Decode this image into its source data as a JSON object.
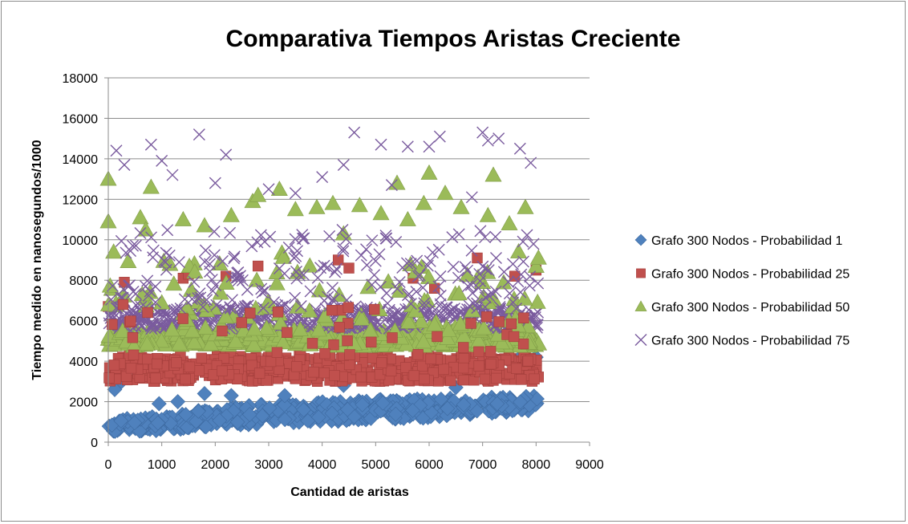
{
  "chart_data": {
    "type": "scatter",
    "title": "Comparativa Tiempos Aristas Creciente",
    "xlabel": "Cantidad de aristas",
    "ylabel": "Tiempo medido en nanosegundos/1000",
    "xlim": [
      0,
      9000
    ],
    "ylim": [
      0,
      18000
    ],
    "xticks": [
      "0",
      "1000",
      "2000",
      "3000",
      "4000",
      "5000",
      "6000",
      "7000",
      "8000",
      "9000"
    ],
    "yticks": [
      "0",
      "2000",
      "4000",
      "6000",
      "8000",
      "10000",
      "12000",
      "14000",
      "16000",
      "18000"
    ],
    "grid": "horizontal",
    "legend_position": "right",
    "x_range": [
      0,
      8050
    ],
    "series": [
      {
        "name": "Grafo 300 Nodos - Probabilidad 1",
        "marker": "diamond",
        "color": "#4f81bd",
        "stroke": "#3d6aa1",
        "band": [
          {
            "x": 0,
            "low": 500,
            "high": 1100
          },
          {
            "x": 1000,
            "low": 550,
            "high": 1300
          },
          {
            "x": 2000,
            "low": 800,
            "high": 1700
          },
          {
            "x": 3000,
            "low": 900,
            "high": 1900
          },
          {
            "x": 4000,
            "low": 1000,
            "high": 2000
          },
          {
            "x": 5000,
            "low": 1100,
            "high": 2100
          },
          {
            "x": 6000,
            "low": 1200,
            "high": 2150
          },
          {
            "x": 7000,
            "low": 1400,
            "high": 2200
          },
          {
            "x": 8000,
            "low": 1550,
            "high": 2300
          }
        ],
        "outliers": [
          {
            "x": 120,
            "y": 2600
          },
          {
            "x": 250,
            "y": 3000
          },
          {
            "x": 950,
            "y": 1900
          },
          {
            "x": 1300,
            "y": 2000
          },
          {
            "x": 1800,
            "y": 2400
          },
          {
            "x": 2300,
            "y": 2300
          },
          {
            "x": 3300,
            "y": 2300
          },
          {
            "x": 4400,
            "y": 2800
          },
          {
            "x": 6500,
            "y": 2700
          },
          {
            "x": 7700,
            "y": 4200
          },
          {
            "x": 8000,
            "y": 4200
          }
        ]
      },
      {
        "name": "Grafo 300 Nodos - Probabilidad 25",
        "marker": "square",
        "color": "#c0504d",
        "stroke": "#a33e3b",
        "band": [
          {
            "x": 0,
            "low": 3000,
            "high": 4300
          },
          {
            "x": 2000,
            "low": 3000,
            "high": 4300
          },
          {
            "x": 4000,
            "low": 3000,
            "high": 4300
          },
          {
            "x": 6000,
            "low": 3000,
            "high": 4300
          },
          {
            "x": 8000,
            "low": 3000,
            "high": 4300
          }
        ],
        "outliers": [
          {
            "x": 0,
            "y": 6700
          },
          {
            "x": 300,
            "y": 7900
          },
          {
            "x": 1400,
            "y": 8100
          },
          {
            "x": 1500,
            "y": 8300
          },
          {
            "x": 2200,
            "y": 8200
          },
          {
            "x": 2800,
            "y": 8700
          },
          {
            "x": 4300,
            "y": 9000
          },
          {
            "x": 4500,
            "y": 8600
          },
          {
            "x": 5700,
            "y": 8100
          },
          {
            "x": 6100,
            "y": 7600
          },
          {
            "x": 6900,
            "y": 9100
          },
          {
            "x": 7600,
            "y": 8200
          },
          {
            "x": 8000,
            "y": 8500
          }
        ]
      },
      {
        "name": "Grafo 300 Nodos - Probabilidad 50",
        "marker": "triangle",
        "color": "#9bbb59",
        "stroke": "#809c47",
        "band": [
          {
            "x": 0,
            "low": 4750,
            "high": 5500
          },
          {
            "x": 4000,
            "low": 4750,
            "high": 5500
          },
          {
            "x": 8000,
            "low": 4750,
            "high": 5500
          }
        ],
        "outliers": [
          {
            "x": 0,
            "y": 13000
          },
          {
            "x": 0,
            "y": 10900
          },
          {
            "x": 100,
            "y": 9400
          },
          {
            "x": 600,
            "y": 11100
          },
          {
            "x": 800,
            "y": 12600
          },
          {
            "x": 700,
            "y": 10500
          },
          {
            "x": 1400,
            "y": 11000
          },
          {
            "x": 1800,
            "y": 10700
          },
          {
            "x": 2300,
            "y": 11200
          },
          {
            "x": 2700,
            "y": 11900
          },
          {
            "x": 2800,
            "y": 12200
          },
          {
            "x": 3200,
            "y": 12500
          },
          {
            "x": 3500,
            "y": 11500
          },
          {
            "x": 3900,
            "y": 11600
          },
          {
            "x": 4200,
            "y": 11800
          },
          {
            "x": 4400,
            "y": 10300
          },
          {
            "x": 4700,
            "y": 11700
          },
          {
            "x": 5100,
            "y": 11300
          },
          {
            "x": 5400,
            "y": 12800
          },
          {
            "x": 5600,
            "y": 11000
          },
          {
            "x": 5900,
            "y": 11800
          },
          {
            "x": 6000,
            "y": 13300
          },
          {
            "x": 6300,
            "y": 12300
          },
          {
            "x": 6600,
            "y": 11600
          },
          {
            "x": 7100,
            "y": 11200
          },
          {
            "x": 7200,
            "y": 13200
          },
          {
            "x": 7500,
            "y": 10800
          },
          {
            "x": 7800,
            "y": 11600
          },
          {
            "x": 8000,
            "y": 8700
          }
        ]
      },
      {
        "name": "Grafo 300 Nodos - Probabilidad 75",
        "marker": "cross",
        "color": "#8064a2",
        "stroke": "#7a5b9e",
        "band": [
          {
            "x": 0,
            "low": 5600,
            "high": 6600
          },
          {
            "x": 4000,
            "low": 5600,
            "high": 6600
          },
          {
            "x": 8000,
            "low": 5600,
            "high": 6600
          }
        ],
        "outliers": [
          {
            "x": 150,
            "y": 14400
          },
          {
            "x": 300,
            "y": 13700
          },
          {
            "x": 800,
            "y": 14700
          },
          {
            "x": 1000,
            "y": 13900
          },
          {
            "x": 1200,
            "y": 13200
          },
          {
            "x": 1700,
            "y": 15200
          },
          {
            "x": 2200,
            "y": 14200
          },
          {
            "x": 2000,
            "y": 12800
          },
          {
            "x": 3000,
            "y": 12500
          },
          {
            "x": 3500,
            "y": 12300
          },
          {
            "x": 4000,
            "y": 13100
          },
          {
            "x": 4400,
            "y": 13700
          },
          {
            "x": 4600,
            "y": 15300
          },
          {
            "x": 5100,
            "y": 14700
          },
          {
            "x": 5300,
            "y": 12700
          },
          {
            "x": 5600,
            "y": 14600
          },
          {
            "x": 6000,
            "y": 14600
          },
          {
            "x": 6200,
            "y": 15100
          },
          {
            "x": 6800,
            "y": 12100
          },
          {
            "x": 7000,
            "y": 15300
          },
          {
            "x": 7100,
            "y": 14900
          },
          {
            "x": 7300,
            "y": 15000
          },
          {
            "x": 7700,
            "y": 14500
          },
          {
            "x": 7900,
            "y": 13800
          }
        ]
      }
    ]
  }
}
